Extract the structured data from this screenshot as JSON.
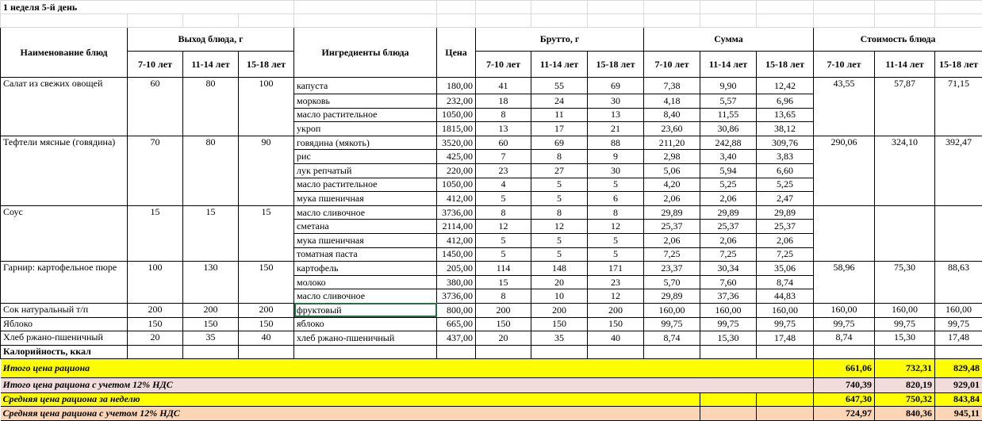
{
  "title": "1 неделя 5-й день",
  "headers": {
    "dish_name": "Наименование блюд",
    "yield": "Выход блюда, г",
    "ingredients": "Ингредиенты блюда",
    "price": "Цена",
    "brutto": "Брутто, г",
    "sum": "Сумма",
    "cost": "Стоимость блюда",
    "ages": [
      "7-10 лет",
      "11-14 лет",
      "15-18 лет"
    ]
  },
  "dishes": [
    {
      "name": "Салат из свежих овощей",
      "yield": [
        "60",
        "80",
        "100"
      ],
      "cost": [
        "43,55",
        "57,87",
        "71,15"
      ],
      "ingredients": [
        {
          "name": "капуста",
          "price": "180,00",
          "brutto": [
            "41",
            "55",
            "69"
          ],
          "sum": [
            "7,38",
            "9,90",
            "12,42"
          ]
        },
        {
          "name": "морковь",
          "price": "232,00",
          "brutto": [
            "18",
            "24",
            "30"
          ],
          "sum": [
            "4,18",
            "5,57",
            "6,96"
          ]
        },
        {
          "name": "масло растительное",
          "price": "1050,00",
          "brutto": [
            "8",
            "11",
            "13"
          ],
          "sum": [
            "8,40",
            "11,55",
            "13,65"
          ]
        },
        {
          "name": "укроп",
          "price": "1815,00",
          "brutto": [
            "13",
            "17",
            "21"
          ],
          "sum": [
            "23,60",
            "30,86",
            "38,12"
          ]
        }
      ]
    },
    {
      "name": "Тефтели мясные (говядина)",
      "yield": [
        "70",
        "80",
        "90"
      ],
      "cost": [
        "290,06",
        "324,10",
        "392,47"
      ],
      "ingredients": [
        {
          "name": "говядина (мякоть)",
          "price": "3520,00",
          "brutto": [
            "60",
            "69",
            "88"
          ],
          "sum": [
            "211,20",
            "242,88",
            "309,76"
          ]
        },
        {
          "name": "рис",
          "price": "425,00",
          "brutto": [
            "7",
            "8",
            "9"
          ],
          "sum": [
            "2,98",
            "3,40",
            "3,83"
          ]
        },
        {
          "name": "лук репчатый",
          "price": "220,00",
          "brutto": [
            "23",
            "27",
            "30"
          ],
          "sum": [
            "5,06",
            "5,94",
            "6,60"
          ]
        },
        {
          "name": "масло растительное",
          "price": "1050,00",
          "brutto": [
            "4",
            "5",
            "5"
          ],
          "sum": [
            "4,20",
            "5,25",
            "5,25"
          ]
        },
        {
          "name": "мука пшеничная",
          "price": "412,00",
          "brutto": [
            "5",
            "5",
            "6"
          ],
          "sum": [
            "2,06",
            "2,06",
            "2,47"
          ]
        }
      ]
    },
    {
      "name": "Соус",
      "yield": [
        "15",
        "15",
        "15"
      ],
      "cost": [
        "",
        "",
        ""
      ],
      "ingredients": [
        {
          "name": "масло сливочное",
          "price": "3736,00",
          "brutto": [
            "8",
            "8",
            "8"
          ],
          "sum": [
            "29,89",
            "29,89",
            "29,89"
          ]
        },
        {
          "name": "сметана",
          "price": "2114,00",
          "brutto": [
            "12",
            "12",
            "12"
          ],
          "sum": [
            "25,37",
            "25,37",
            "25,37"
          ]
        },
        {
          "name": "мука пшеничная",
          "price": "412,00",
          "brutto": [
            "5",
            "5",
            "5"
          ],
          "sum": [
            "2,06",
            "2,06",
            "2,06"
          ]
        },
        {
          "name": "томатная паста",
          "price": "1450,00",
          "brutto": [
            "5",
            "5",
            "5"
          ],
          "sum": [
            "7,25",
            "7,25",
            "7,25"
          ]
        }
      ]
    },
    {
      "name": "Гарнир:  картофельное пюре",
      "yield": [
        "100",
        "130",
        "150"
      ],
      "cost": [
        "58,96",
        "75,30",
        "88,63"
      ],
      "ingredients": [
        {
          "name": "картофель",
          "price": "205,00",
          "brutto": [
            "114",
            "148",
            "171"
          ],
          "sum": [
            "23,37",
            "30,34",
            "35,06"
          ]
        },
        {
          "name": "молоко",
          "price": "380,00",
          "brutto": [
            "15",
            "20",
            "23"
          ],
          "sum": [
            "5,70",
            "7,60",
            "8,74"
          ]
        },
        {
          "name": "масло сливочное",
          "price": "3736,00",
          "brutto": [
            "8",
            "10",
            "12"
          ],
          "sum": [
            "29,89",
            "37,36",
            "44,83"
          ]
        }
      ]
    },
    {
      "name": "Сок натуральный т/п",
      "yield": [
        "200",
        "200",
        "200"
      ],
      "cost": [
        "160,00",
        "160,00",
        "160,00"
      ],
      "ingredients": [
        {
          "name": "фруктовый",
          "price": "800,00",
          "brutto": [
            "200",
            "200",
            "200"
          ],
          "sum": [
            "160,00",
            "160,00",
            "160,00"
          ],
          "selected": true
        }
      ]
    },
    {
      "name": "Яблоко",
      "yield": [
        "150",
        "150",
        "150"
      ],
      "cost": [
        "99,75",
        "99,75",
        "99,75"
      ],
      "ingredients": [
        {
          "name": "яблоко",
          "price": "665,00",
          "brutto": [
            "150",
            "150",
            "150"
          ],
          "sum": [
            "99,75",
            "99,75",
            "99,75"
          ]
        }
      ]
    },
    {
      "name": "Хлеб ржано-пшеничный",
      "yield": [
        "20",
        "35",
        "40"
      ],
      "cost": [
        "8,74",
        "15,30",
        "17,48"
      ],
      "ingredients": [
        {
          "name": "хлеб ржано-пшеничный",
          "price": "437,00",
          "brutto": [
            "20",
            "35",
            "40"
          ],
          "sum": [
            "8,74",
            "15,30",
            "17,48"
          ]
        }
      ]
    }
  ],
  "calories_label": "Калорийность, ккал",
  "summary": [
    {
      "label": "Итого цена рациона",
      "values": [
        "661,06",
        "732,31",
        "829,48"
      ],
      "color": "#ffff00"
    },
    {
      "label": "Итого цена рациона с учетом 12% НДС",
      "values": [
        "740,39",
        "820,19",
        "929,01"
      ],
      "color": "#f2dcdb"
    },
    {
      "label": "Средняя цена рациона за неделю",
      "values": [
        "647,30",
        "750,32",
        "843,84"
      ],
      "color": "#ffff00"
    },
    {
      "label": "Средняя цена рациона с учетом 12% НДС",
      "values": [
        "724,97",
        "840,36",
        "945,11"
      ],
      "color": "#fcd5b4"
    }
  ]
}
